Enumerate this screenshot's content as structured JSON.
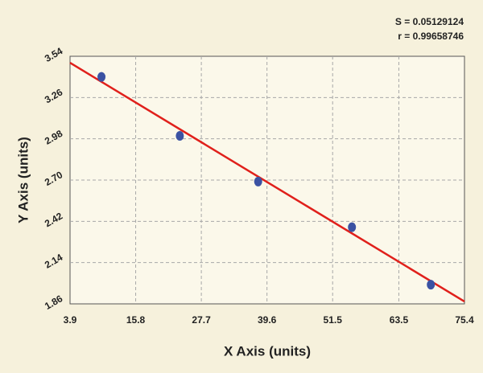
{
  "chart_data": {
    "type": "scatter",
    "stats": [
      "S = 0.05129124",
      "r = 0.99658746"
    ],
    "x_label": "X Axis (units)",
    "y_label": "Y Axis (units)",
    "x": [
      9.6,
      23.8,
      38.0,
      55.0,
      69.3
    ],
    "values": [
      3.4,
      3.0,
      2.69,
      2.38,
      1.99
    ],
    "color": "#3b52a3",
    "fit": {
      "x": [
        3.9,
        75.4
      ],
      "values": [
        3.496,
        1.876
      ],
      "color": "#e0201b"
    },
    "xlim": [
      3.9,
      75.4
    ],
    "xticks": [
      3.9,
      15.8,
      27.7,
      39.6,
      51.5,
      63.5,
      75.4
    ],
    "ylim": [
      1.86,
      3.54
    ],
    "yticks": [
      1.86,
      2.14,
      2.42,
      {
        "value": 2.7,
        "label": "2.70"
      },
      2.98,
      3.26,
      3.54
    ],
    "grid": true
  }
}
